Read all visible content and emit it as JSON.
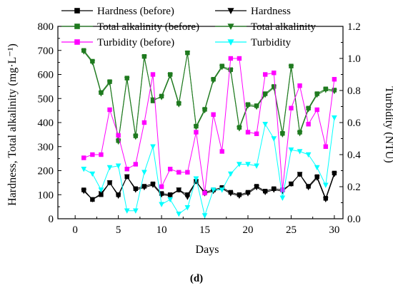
{
  "chart_data": {
    "type": "line",
    "caption": "(d)",
    "xlabel": "Days",
    "ylabel_left": "Hardness, Total alkalinity (mg·L⁻¹)",
    "ylabel_right": "Turbidity (NTU)",
    "xlim": [
      -2,
      31
    ],
    "ylim_left": [
      0,
      800
    ],
    "ylim_right": [
      0,
      1.2
    ],
    "x_ticks": [
      0,
      5,
      10,
      15,
      20,
      25,
      30
    ],
    "y_left_ticks": [
      0,
      100,
      200,
      300,
      400,
      500,
      600,
      700,
      800
    ],
    "y_right_ticks": [
      "0.0",
      "0.2",
      "0.4",
      "0.6",
      "0.8",
      "1.0",
      "1.2"
    ],
    "legend_placement": "top",
    "series": [
      {
        "name": "Hardness (before)",
        "axis": "left",
        "color": "#000000",
        "marker": "square",
        "x": [
          1,
          2,
          3,
          4,
          5,
          6,
          7,
          8,
          9,
          10,
          11,
          12,
          13,
          14,
          15,
          16,
          17,
          18,
          19,
          20,
          21,
          22,
          23,
          24,
          25,
          26,
          27,
          28,
          29,
          30
        ],
        "values": [
          120,
          80,
          100,
          150,
          100,
          175,
          125,
          135,
          145,
          105,
          100,
          120,
          100,
          155,
          110,
          120,
          130,
          110,
          100,
          110,
          135,
          115,
          125,
          120,
          145,
          185,
          135,
          175,
          85,
          190
        ]
      },
      {
        "name": "Hardness",
        "axis": "left",
        "color": "#000000",
        "marker": "triangle-down",
        "x": [
          1,
          2,
          3,
          4,
          5,
          6,
          7,
          8,
          9,
          10,
          11,
          12,
          13,
          14,
          15,
          16,
          17,
          18,
          19,
          20,
          21,
          22,
          23,
          24,
          25,
          26,
          27,
          28,
          29,
          30
        ],
        "values": [
          115,
          80,
          105,
          150,
          95,
          175,
          120,
          130,
          140,
          100,
          95,
          120,
          90,
          155,
          105,
          115,
          125,
          105,
          95,
          105,
          130,
          110,
          120,
          115,
          145,
          185,
          130,
          170,
          80,
          185
        ]
      },
      {
        "name": "Total alkalinity (before)",
        "axis": "left",
        "color": "#1f7a1f",
        "marker": "square",
        "x": [
          1,
          2,
          3,
          4,
          5,
          6,
          7,
          8,
          9,
          10,
          11,
          12,
          13,
          14,
          15,
          16,
          17,
          18,
          19,
          20,
          21,
          22,
          23,
          24,
          25,
          26,
          27,
          28,
          29,
          30
        ],
        "values": [
          700,
          655,
          525,
          570,
          325,
          585,
          345,
          675,
          490,
          510,
          600,
          480,
          690,
          385,
          455,
          580,
          635,
          620,
          380,
          475,
          470,
          520,
          550,
          355,
          635,
          360,
          460,
          520,
          540,
          535
        ]
      },
      {
        "name": "Total alkalinity",
        "axis": "left",
        "color": "#1f7a1f",
        "marker": "triangle-down",
        "x": [
          1,
          2,
          3,
          4,
          5,
          6,
          7,
          8,
          9,
          10,
          11,
          12,
          13,
          14,
          15,
          16,
          17,
          18,
          19,
          20,
          21,
          22,
          23,
          24,
          25,
          26,
          27,
          28,
          29,
          30
        ],
        "values": [
          695,
          650,
          520,
          565,
          320,
          580,
          340,
          670,
          495,
          505,
          595,
          475,
          688,
          380,
          450,
          575,
          630,
          615,
          375,
          470,
          465,
          515,
          545,
          350,
          630,
          355,
          455,
          515,
          535,
          530
        ]
      },
      {
        "name": "Turbidity (before)",
        "axis": "right",
        "color": "#ff00ff",
        "marker": "square",
        "x": [
          1,
          2,
          3,
          4,
          5,
          6,
          7,
          8,
          9,
          10,
          11,
          12,
          13,
          14,
          15,
          16,
          17,
          18,
          19,
          20,
          21,
          22,
          23,
          24,
          25,
          26,
          27,
          28,
          29,
          30
        ],
        "values": [
          0.38,
          0.4,
          0.4,
          0.68,
          0.52,
          0.31,
          0.34,
          0.6,
          0.9,
          0.2,
          0.31,
          0.29,
          0.29,
          0.54,
          0.16,
          0.65,
          0.42,
          1.0,
          1.0,
          0.54,
          0.53,
          0.9,
          0.91,
          0.18,
          0.69,
          0.83,
          0.59,
          0.68,
          0.45,
          0.87
        ]
      },
      {
        "name": "Turbidity",
        "axis": "right",
        "color": "#00ffff",
        "marker": "triangle-down",
        "x": [
          1,
          2,
          3,
          4,
          5,
          6,
          7,
          8,
          9,
          10,
          11,
          12,
          13,
          14,
          15,
          16,
          17,
          18,
          19,
          20,
          21,
          22,
          23,
          24,
          25,
          26,
          27,
          28,
          29,
          30
        ],
        "values": [
          0.31,
          0.28,
          0.18,
          0.32,
          0.33,
          0.05,
          0.05,
          0.29,
          0.45,
          0.09,
          0.12,
          0.03,
          0.07,
          0.25,
          0.02,
          0.18,
          0.18,
          0.28,
          0.34,
          0.34,
          0.33,
          0.59,
          0.5,
          0.13,
          0.43,
          0.42,
          0.4,
          0.32,
          0.21,
          0.63
        ]
      }
    ]
  }
}
